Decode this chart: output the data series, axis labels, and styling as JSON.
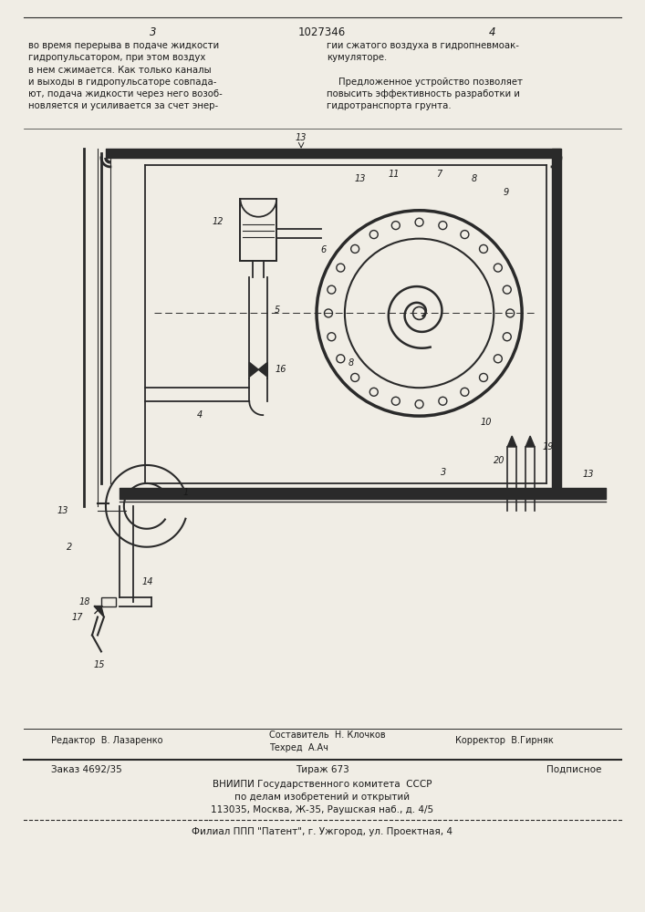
{
  "page_color": "#f0ede5",
  "patent_number": "1027346",
  "page_num_left": "3",
  "page_num_right": "4",
  "text_left": "во время перерыва в подаче жидкости\nгидропульсатором, при этом воздух\nв нем сжимается. Как только каналы\nи выходы в гидропульсаторе совпада-\nют, подача жидкости через него возоб-\nновляется и усиливается за счет энер-",
  "text_right": "гии сжатого воздуха в гидропневмоак-\nкумуляторе.\n\n    Предложенное устройство позволяет\nповысить эффективность разработки и\nгидротранспорта грунта.",
  "line_color": "#2a2a2a",
  "text_color": "#1a1a1a",
  "draw_color": "#2a2a2a"
}
